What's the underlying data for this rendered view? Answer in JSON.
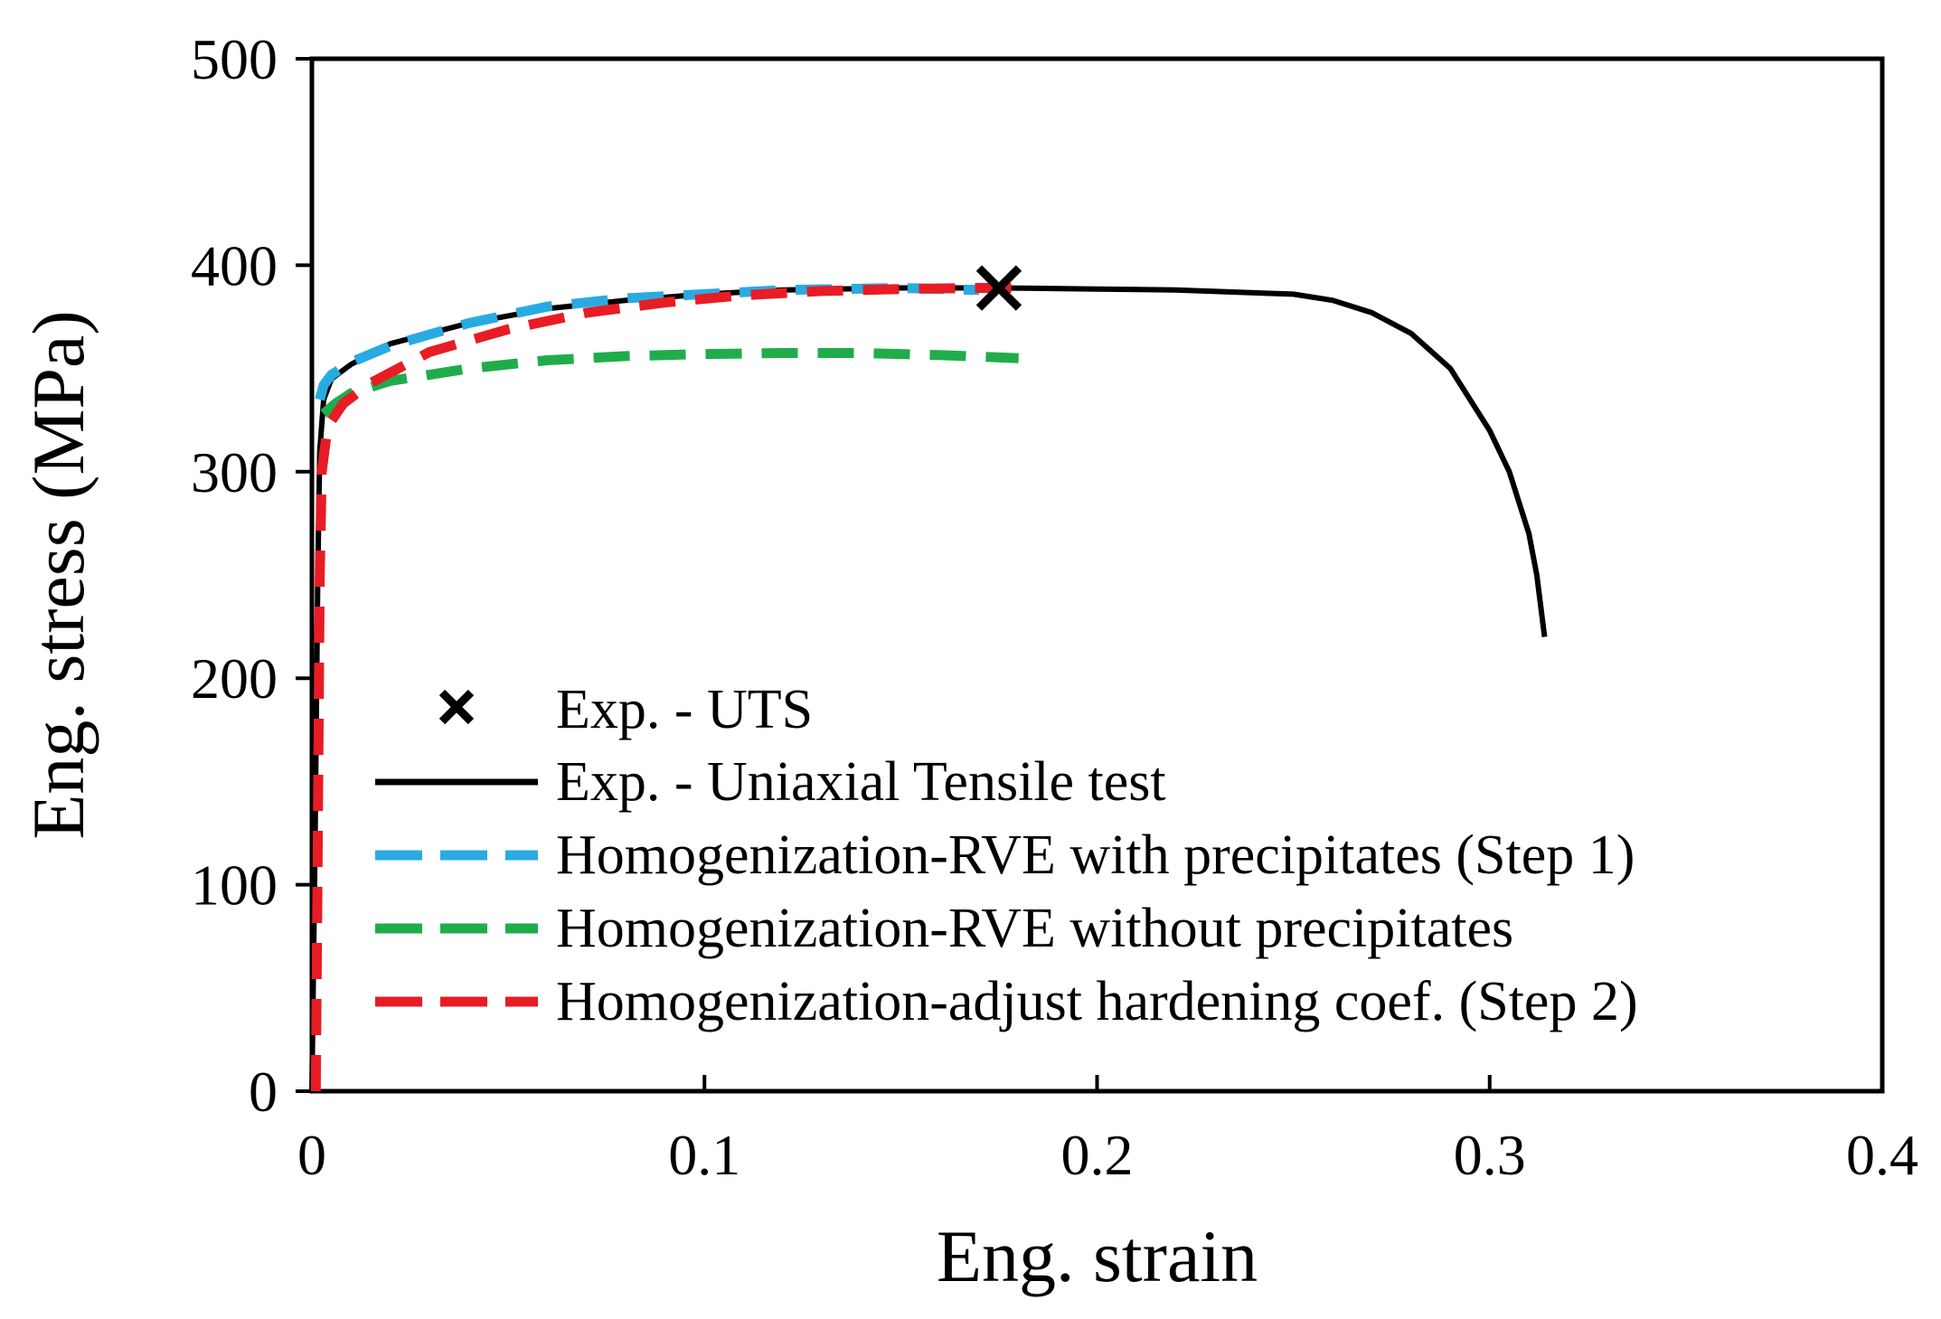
{
  "chart_data": {
    "type": "line",
    "title": "",
    "xlabel": "Eng. strain",
    "ylabel": "Eng. stress (MPa)",
    "xlim": [
      0,
      0.4
    ],
    "ylim": [
      0,
      500
    ],
    "x_ticks": [
      0,
      0.1,
      0.2,
      0.3,
      0.4
    ],
    "x_tick_labels": [
      "0",
      "0.1",
      "0.2",
      "0.3",
      "0.4"
    ],
    "y_ticks": [
      0,
      100,
      200,
      300,
      400,
      500
    ],
    "y_tick_labels": [
      "0",
      "100",
      "200",
      "300",
      "400",
      "500"
    ],
    "grid": false,
    "legend_position": "bottom-left",
    "series": [
      {
        "name": "Exp. - UTS",
        "style": "marker-x",
        "color": "#000000",
        "x": [
          0.175
        ],
        "y": [
          389
        ]
      },
      {
        "name": "Exp. - Uniaxial Tensile test",
        "style": "solid",
        "color": "#000000",
        "x": [
          0,
          0.0008,
          0.0015,
          0.002,
          0.003,
          0.005,
          0.01,
          0.02,
          0.04,
          0.06,
          0.08,
          0.1,
          0.12,
          0.15,
          0.175,
          0.2,
          0.22,
          0.25,
          0.26,
          0.27,
          0.28,
          0.29,
          0.3,
          0.305,
          0.31,
          0.312,
          0.313,
          0.314
        ],
        "y": [
          0,
          120,
          250,
          310,
          335,
          345,
          352,
          362,
          372,
          379,
          383,
          386,
          388,
          389,
          389,
          388.5,
          388,
          386,
          383,
          377,
          367,
          350,
          320,
          300,
          270,
          250,
          235,
          220
        ]
      },
      {
        "name": "Homogenization-RVE with precipitates",
        "step_label": "(Step 1)",
        "style": "dashed",
        "color": "#29abe2",
        "x": [
          0.002,
          0.003,
          0.005,
          0.01,
          0.02,
          0.04,
          0.06,
          0.08,
          0.1,
          0.12,
          0.15,
          0.17
        ],
        "y": [
          335,
          342,
          347,
          353,
          361,
          372,
          380,
          384,
          386,
          388,
          389,
          388
        ]
      },
      {
        "name": "Homogenization-RVE without precipitates",
        "style": "dashed",
        "color": "#1fad4b",
        "x": [
          0.003,
          0.006,
          0.01,
          0.02,
          0.04,
          0.06,
          0.08,
          0.1,
          0.12,
          0.14,
          0.16,
          0.18
        ],
        "y": [
          328,
          333,
          338,
          344,
          350,
          354,
          356,
          357,
          357.5,
          357.5,
          356.5,
          355
        ]
      },
      {
        "name": "Homogenization-adjust hardening coef.",
        "step_label": "(Step 2)",
        "style": "dashed",
        "color": "#e81c24",
        "x": [
          0.001,
          0.0015,
          0.002,
          0.0025,
          0.004,
          0.008,
          0.015,
          0.03,
          0.05,
          0.07,
          0.09,
          0.11,
          0.13,
          0.15,
          0.17,
          0.18
        ],
        "y": [
          0,
          120,
          250,
          300,
          322,
          333,
          343,
          358,
          369,
          377,
          382,
          385.5,
          387.5,
          388.5,
          389,
          389
        ]
      }
    ],
    "colors": {
      "axis": "#000000",
      "background": "#ffffff"
    }
  }
}
